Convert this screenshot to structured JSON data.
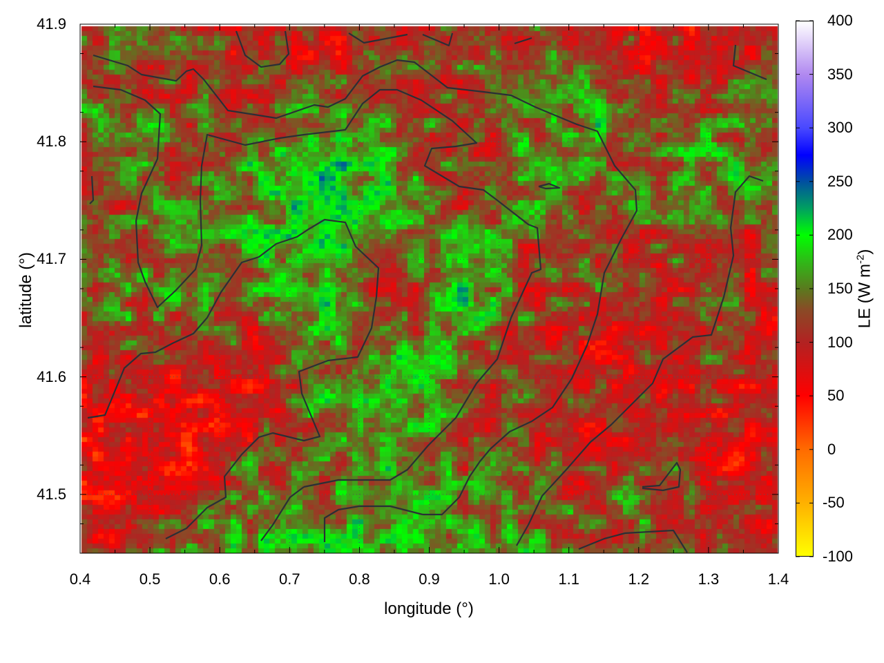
{
  "chart_data": {
    "type": "heatmap",
    "xlabel": "longitude (°)",
    "ylabel": "latitude (°)",
    "colorbar_label": "LE (W m",
    "colorbar_label_exp": "-2",
    "colorbar_label_close": ")",
    "xlim": [
      0.4,
      1.4
    ],
    "ylim": [
      41.45,
      41.9
    ],
    "clim": [
      -100,
      400
    ],
    "xticks": [
      "0.4",
      "0.5",
      "0.6",
      "0.7",
      "0.8",
      "0.9",
      "1.0",
      "1.1",
      "1.2",
      "1.3",
      "1.4"
    ],
    "xtick_values": [
      0.4,
      0.5,
      0.6,
      0.7,
      0.8,
      0.9,
      1.0,
      1.1,
      1.2,
      1.3,
      1.4
    ],
    "yticks": [
      "41.5",
      "41.6",
      "41.7",
      "41.8",
      "41.9"
    ],
    "ytick_values": [
      41.5,
      41.6,
      41.7,
      41.8,
      41.9
    ],
    "cticks": [
      "-100",
      "-50",
      "0",
      "50",
      "100",
      "150",
      "200",
      "250",
      "300",
      "350",
      "400"
    ],
    "ctick_values": [
      -100,
      -50,
      0,
      50,
      100,
      150,
      200,
      250,
      300,
      350,
      400
    ],
    "grid": true,
    "colormap": [
      {
        "v": -100,
        "c": "#ffff00"
      },
      {
        "v": -50,
        "c": "#ffb000"
      },
      {
        "v": 0,
        "c": "#ff6a00"
      },
      {
        "v": 50,
        "c": "#ff0000"
      },
      {
        "v": 100,
        "c": "#b22222"
      },
      {
        "v": 130,
        "c": "#8a4a26"
      },
      {
        "v": 150,
        "c": "#5a7a1e"
      },
      {
        "v": 175,
        "c": "#30b818"
      },
      {
        "v": 200,
        "c": "#00ff00"
      },
      {
        "v": 225,
        "c": "#00a060"
      },
      {
        "v": 250,
        "c": "#0050a0"
      },
      {
        "v": 275,
        "c": "#0000ff"
      },
      {
        "v": 300,
        "c": "#4848ff"
      },
      {
        "v": 350,
        "c": "#b088f0"
      },
      {
        "v": 400,
        "c": "#ffffff"
      }
    ],
    "grid_lon_centers": [
      0.45,
      0.55,
      0.65,
      0.75,
      0.85,
      0.95,
      1.05,
      1.15,
      1.25,
      1.35
    ],
    "grid_lat_centers": [
      41.875,
      41.825,
      41.775,
      41.725,
      41.675,
      41.625,
      41.575,
      41.525,
      41.475
    ],
    "values_approx": [
      [
        130,
        110,
        100,
        90,
        110,
        120,
        130,
        100,
        90,
        90
      ],
      [
        140,
        120,
        110,
        150,
        140,
        120,
        150,
        170,
        130,
        140
      ],
      [
        130,
        140,
        170,
        200,
        160,
        110,
        140,
        130,
        150,
        150
      ],
      [
        120,
        150,
        170,
        200,
        160,
        140,
        130,
        120,
        130,
        110
      ],
      [
        140,
        150,
        150,
        180,
        60,
        200,
        120,
        110,
        110,
        100
      ],
      [
        120,
        110,
        90,
        160,
        160,
        140,
        110,
        80,
        100,
        110
      ],
      [
        80,
        60,
        60,
        170,
        190,
        130,
        110,
        100,
        110,
        90
      ],
      [
        80,
        70,
        140,
        120,
        180,
        120,
        110,
        100,
        110,
        80
      ],
      [
        80,
        150,
        150,
        170,
        180,
        170,
        150,
        140,
        130,
        100
      ]
    ]
  }
}
